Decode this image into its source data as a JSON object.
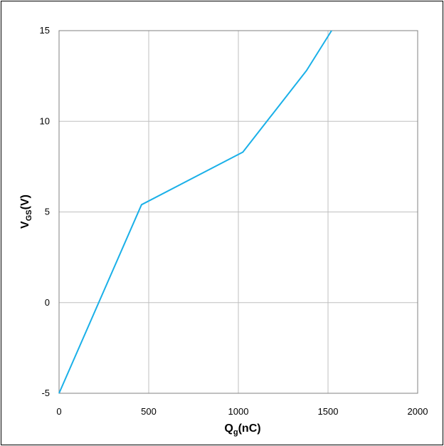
{
  "chart_data": {
    "type": "line",
    "title": "",
    "xlabel": {
      "main": "Q",
      "sub": "g",
      "rest": "(nC)"
    },
    "ylabel": {
      "main": "V",
      "sub": "GS",
      "rest": "(V)"
    },
    "xlim": [
      0,
      2000
    ],
    "ylim": [
      -5,
      15
    ],
    "xticks": [
      0,
      500,
      1000,
      1500,
      2000
    ],
    "yticks": [
      -5,
      0,
      5,
      10,
      15
    ],
    "xtick_labels": [
      "0",
      "500",
      "1000",
      "1500",
      "2000"
    ],
    "ytick_labels": [
      "-5",
      "0",
      "5",
      "10",
      "15"
    ],
    "grid": true,
    "line_color": "#1ab0e8",
    "series": [
      {
        "x": [
          0,
          460,
          1025,
          1380,
          1520
        ],
        "y": [
          -5,
          5.4,
          8.3,
          12.8,
          15
        ]
      }
    ]
  }
}
